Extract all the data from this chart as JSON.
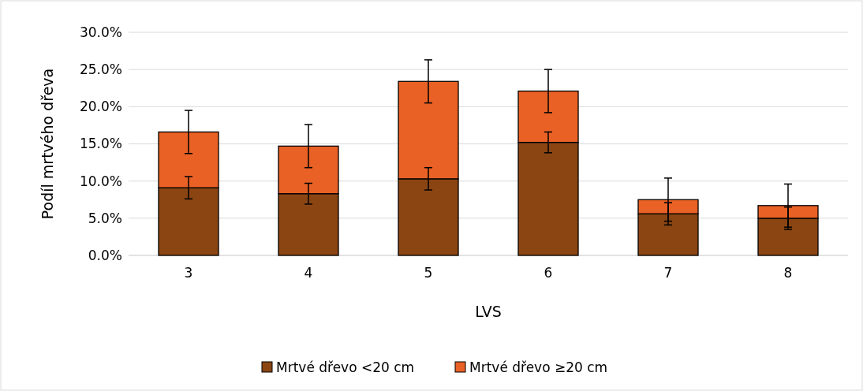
{
  "chart_data": {
    "type": "bar",
    "stacked": true,
    "xlabel": "LVS",
    "ylabel": "Podíl mrtvého dřeva",
    "categories": [
      "3",
      "4",
      "5",
      "6",
      "7",
      "8"
    ],
    "series": [
      {
        "name": "Mrtvé dřevo <20 cm",
        "color": "#8b4513",
        "values": [
          9.1,
          8.3,
          10.3,
          15.2,
          5.6,
          5.0
        ],
        "errors": [
          1.5,
          1.4,
          1.5,
          1.4,
          1.5,
          1.5
        ]
      },
      {
        "name": "Mrtvé dřevo ≥20 cm",
        "color": "#e96125",
        "values": [
          7.5,
          6.4,
          13.1,
          6.9,
          1.9,
          1.7
        ],
        "errors": [
          2.9,
          2.9,
          2.9,
          2.9,
          2.9,
          2.9
        ]
      }
    ],
    "ylim": [
      0,
      30
    ],
    "yticks": [
      {
        "value": 0,
        "label": "0.0%"
      },
      {
        "value": 5,
        "label": "5.0%"
      },
      {
        "value": 10,
        "label": "10.0%"
      },
      {
        "value": 15,
        "label": "15.0%"
      },
      {
        "value": 20,
        "label": "20.0%"
      },
      {
        "value": 25,
        "label": "25.0%"
      },
      {
        "value": 30,
        "label": "30.0%"
      }
    ],
    "grid": "y",
    "legend": "bottom"
  }
}
